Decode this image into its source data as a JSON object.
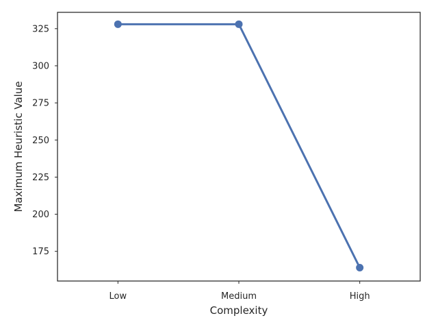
{
  "chart_data": {
    "type": "line",
    "title": "",
    "xlabel": "Complexity",
    "ylabel": "Maximum Heuristic Value",
    "categories": [
      "Low",
      "Medium",
      "High"
    ],
    "series": [
      {
        "values": [
          328,
          328,
          164
        ],
        "color": "#4c72b0"
      }
    ],
    "ylim": [
      155,
      336
    ],
    "yticks": [
      175,
      200,
      225,
      250,
      275,
      300,
      325
    ],
    "grid": false,
    "legend": "none"
  }
}
